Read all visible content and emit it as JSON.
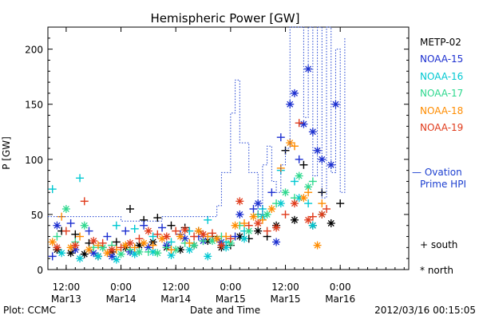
{
  "chart_data": {
    "type": "scatter",
    "title": "Hemispheric Power [GW]",
    "ylabel": "P [GW]",
    "xlabel": "Date and Time",
    "ylim": [
      0,
      220
    ],
    "yticks": [
      0,
      50,
      100,
      150,
      200
    ],
    "xlim": [
      0,
      79
    ],
    "x_unit": "hours since 2012-03-12 08:00",
    "xticks": [
      {
        "x": 4,
        "time": "12:00",
        "date": "Mar13"
      },
      {
        "x": 16,
        "time": "0:00",
        "date": "Mar14"
      },
      {
        "x": 28,
        "time": "12:00",
        "date": "Mar14"
      },
      {
        "x": 40,
        "time": "0:00",
        "date": "Mar15"
      },
      {
        "x": 52,
        "time": "12:00",
        "date": "Mar15"
      },
      {
        "x": 64,
        "time": "0:00",
        "date": "Mar16"
      }
    ],
    "grid": false,
    "legend_position": "right",
    "series": [
      {
        "name": "METP-02",
        "color": "#000000",
        "south": [
          [
            3,
            35
          ],
          [
            6,
            32
          ],
          [
            9,
            24
          ],
          [
            12,
            20
          ],
          [
            15,
            25
          ],
          [
            18,
            55
          ],
          [
            21,
            45
          ],
          [
            24,
            47
          ],
          [
            27,
            40
          ],
          [
            30,
            38
          ],
          [
            33,
            35
          ],
          [
            36,
            30
          ],
          [
            40,
            22
          ],
          [
            44,
            28
          ],
          [
            48,
            30
          ],
          [
            52,
            108
          ],
          [
            56,
            95
          ],
          [
            60,
            70
          ],
          [
            64,
            60
          ]
        ],
        "north": [
          [
            2,
            18
          ],
          [
            5,
            15
          ],
          [
            8,
            14
          ],
          [
            11,
            12
          ],
          [
            14,
            16
          ],
          [
            17,
            20
          ],
          [
            20,
            22
          ],
          [
            23,
            25
          ],
          [
            26,
            20
          ],
          [
            29,
            18
          ],
          [
            32,
            22
          ],
          [
            35,
            26
          ],
          [
            38,
            20
          ],
          [
            42,
            30
          ],
          [
            46,
            35
          ],
          [
            50,
            40
          ],
          [
            54,
            45
          ],
          [
            58,
            40
          ],
          [
            62,
            42
          ]
        ]
      },
      {
        "name": "NOAA-15",
        "color": "#1c2fd0",
        "south": [
          [
            1,
            12
          ],
          [
            5,
            42
          ],
          [
            9,
            35
          ],
          [
            13,
            30
          ],
          [
            17,
            35
          ],
          [
            21,
            40
          ],
          [
            25,
            38
          ],
          [
            29,
            32
          ],
          [
            33,
            30
          ],
          [
            37,
            28
          ],
          [
            41,
            30
          ],
          [
            45,
            55
          ],
          [
            49,
            70
          ],
          [
            51,
            120
          ],
          [
            55,
            100
          ]
        ],
        "north": [
          [
            2,
            40
          ],
          [
            6,
            18
          ],
          [
            10,
            15
          ],
          [
            14,
            12
          ],
          [
            18,
            16
          ],
          [
            22,
            20
          ],
          [
            26,
            22
          ],
          [
            30,
            28
          ],
          [
            34,
            26
          ],
          [
            38,
            25
          ],
          [
            42,
            50
          ],
          [
            46,
            60
          ],
          [
            50,
            25
          ],
          [
            53,
            150
          ],
          [
            54,
            160
          ],
          [
            56,
            132
          ],
          [
            57,
            182
          ],
          [
            58,
            125
          ],
          [
            59,
            108
          ],
          [
            60,
            100
          ],
          [
            62,
            95
          ],
          [
            63,
            150
          ]
        ]
      },
      {
        "name": "NOAA-16",
        "color": "#00c8d2",
        "south": [
          [
            1,
            73
          ],
          [
            7,
            83
          ],
          [
            15,
            40
          ],
          [
            19,
            37
          ],
          [
            23,
            30
          ],
          [
            27,
            25
          ],
          [
            31,
            35
          ],
          [
            35,
            45
          ],
          [
            39,
            25
          ],
          [
            43,
            35
          ],
          [
            47,
            55
          ],
          [
            51,
            90
          ],
          [
            54,
            80
          ],
          [
            57,
            60
          ]
        ],
        "north": [
          [
            3,
            15
          ],
          [
            7,
            10
          ],
          [
            11,
            12
          ],
          [
            15,
            9
          ],
          [
            19,
            14
          ],
          [
            23,
            16
          ],
          [
            27,
            13
          ],
          [
            31,
            18
          ],
          [
            35,
            12
          ],
          [
            39,
            20
          ],
          [
            43,
            28
          ],
          [
            47,
            48
          ],
          [
            51,
            60
          ],
          [
            55,
            65
          ],
          [
            58,
            40
          ]
        ]
      },
      {
        "name": "NOAA-17",
        "color": "#2ed88e",
        "south": [
          [
            2,
            30
          ],
          [
            6,
            25
          ],
          [
            10,
            20
          ],
          [
            14,
            22
          ],
          [
            18,
            18
          ],
          [
            22,
            16
          ],
          [
            26,
            20
          ],
          [
            30,
            24
          ],
          [
            34,
            26
          ],
          [
            38,
            30
          ],
          [
            42,
            40
          ],
          [
            46,
            50
          ],
          [
            50,
            60
          ],
          [
            54,
            65
          ],
          [
            58,
            80
          ]
        ],
        "north": [
          [
            4,
            55
          ],
          [
            8,
            40
          ],
          [
            12,
            20
          ],
          [
            16,
            14
          ],
          [
            20,
            16
          ],
          [
            24,
            15
          ],
          [
            28,
            18
          ],
          [
            32,
            22
          ],
          [
            36,
            26
          ],
          [
            40,
            24
          ],
          [
            44,
            35
          ],
          [
            48,
            50
          ],
          [
            52,
            70
          ],
          [
            55,
            85
          ],
          [
            57,
            75
          ],
          [
            60,
            50
          ]
        ]
      },
      {
        "name": "NOAA-18",
        "color": "#ff8c00",
        "south": [
          [
            3,
            48
          ],
          [
            7,
            30
          ],
          [
            11,
            22
          ],
          [
            15,
            18
          ],
          [
            19,
            20
          ],
          [
            23,
            22
          ],
          [
            27,
            18
          ],
          [
            31,
            24
          ],
          [
            35,
            30
          ],
          [
            39,
            30
          ],
          [
            43,
            42
          ],
          [
            47,
            45
          ],
          [
            51,
            92
          ],
          [
            54,
            112
          ],
          [
            57,
            70
          ],
          [
            60,
            60
          ]
        ],
        "north": [
          [
            1,
            25
          ],
          [
            5,
            20
          ],
          [
            9,
            18
          ],
          [
            13,
            15
          ],
          [
            17,
            22
          ],
          [
            21,
            24
          ],
          [
            25,
            28
          ],
          [
            29,
            30
          ],
          [
            33,
            35
          ],
          [
            37,
            28
          ],
          [
            41,
            40
          ],
          [
            45,
            48
          ],
          [
            49,
            55
          ],
          [
            53,
            115
          ],
          [
            56,
            65
          ],
          [
            59,
            22
          ]
        ]
      },
      {
        "name": "NOAA-19",
        "color": "#e03a1a",
        "south": [
          [
            4,
            35
          ],
          [
            8,
            62
          ],
          [
            12,
            24
          ],
          [
            16,
            20
          ],
          [
            20,
            28
          ],
          [
            24,
            32
          ],
          [
            28,
            35
          ],
          [
            32,
            30
          ],
          [
            36,
            33
          ],
          [
            40,
            28
          ],
          [
            44,
            40
          ],
          [
            48,
            35
          ],
          [
            52,
            50
          ],
          [
            55,
            133
          ],
          [
            58,
            48
          ],
          [
            61,
            55
          ]
        ],
        "north": [
          [
            2,
            20
          ],
          [
            6,
            22
          ],
          [
            10,
            26
          ],
          [
            14,
            18
          ],
          [
            18,
            24
          ],
          [
            22,
            35
          ],
          [
            26,
            30
          ],
          [
            30,
            36
          ],
          [
            34,
            32
          ],
          [
            38,
            22
          ],
          [
            42,
            62
          ],
          [
            46,
            42
          ],
          [
            50,
            38
          ],
          [
            54,
            60
          ],
          [
            57,
            45
          ],
          [
            60,
            50
          ]
        ]
      },
      {
        "name": "Ovation Prime HPI",
        "color": "#1c3fd0",
        "line": [
          [
            0,
            48
          ],
          [
            16,
            48
          ],
          [
            16,
            44
          ],
          [
            25,
            44
          ],
          [
            25,
            48
          ],
          [
            37,
            48
          ],
          [
            37,
            58
          ],
          [
            38,
            58
          ],
          [
            38,
            88
          ],
          [
            40,
            88
          ],
          [
            40,
            142
          ],
          [
            41,
            142
          ],
          [
            41,
            172
          ],
          [
            42,
            172
          ],
          [
            42,
            115
          ],
          [
            44,
            115
          ],
          [
            44,
            88
          ],
          [
            46,
            88
          ],
          [
            46,
            50
          ],
          [
            47,
            50
          ],
          [
            47,
            95
          ],
          [
            48,
            95
          ],
          [
            48,
            112
          ],
          [
            49,
            112
          ],
          [
            49,
            80
          ],
          [
            50,
            80
          ],
          [
            50,
            70
          ],
          [
            51,
            70
          ],
          [
            51,
            95
          ],
          [
            52,
            95
          ],
          [
            52,
            110
          ],
          [
            53,
            110
          ],
          [
            53,
            220
          ],
          [
            56,
            220
          ],
          [
            56,
            138
          ],
          [
            57,
            138
          ],
          [
            57,
            220
          ],
          [
            58,
            220
          ],
          [
            58,
            85
          ],
          [
            59,
            85
          ],
          [
            59,
            220
          ],
          [
            60,
            220
          ],
          [
            60,
            65
          ],
          [
            61,
            65
          ],
          [
            61,
            220
          ],
          [
            62,
            220
          ],
          [
            62,
            88
          ],
          [
            63,
            88
          ],
          [
            63,
            200
          ],
          [
            64,
            200
          ],
          [
            64,
            70
          ],
          [
            65,
            70
          ],
          [
            65,
            210
          ]
        ]
      }
    ]
  },
  "legend": {
    "metp": "METP-02",
    "noaa15": "NOAA-15",
    "noaa16": "NOAA-16",
    "noaa17": "NOAA-17",
    "noaa18": "NOAA-18",
    "noaa19": "NOAA-19",
    "ovation_line1": "— Ovation",
    "ovation_line2": "Prime HPI",
    "south_label": "+ south",
    "north_label": "* north"
  },
  "footer": {
    "plot_credit": "Plot: CCMC",
    "timestamp": "2012/03/16 00:15:05"
  }
}
